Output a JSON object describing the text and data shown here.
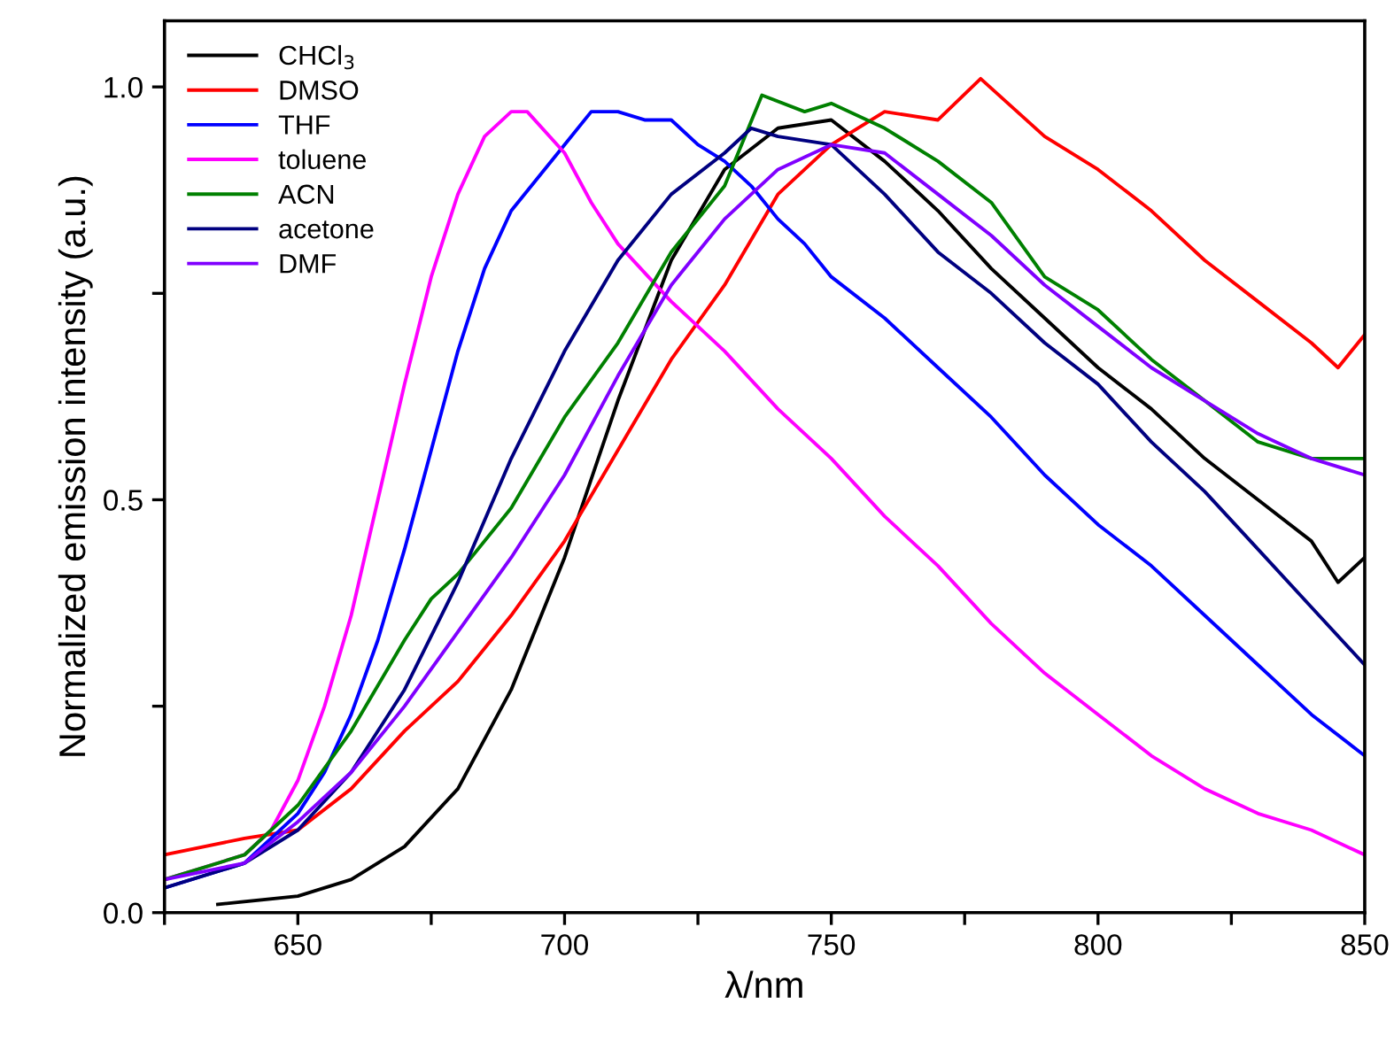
{
  "chart_data": {
    "type": "line",
    "xlabel": "λ/nm",
    "ylabel": "Normalized emission intensity (a.u.)",
    "xlim": [
      625,
      850
    ],
    "ylim": [
      0,
      1.08
    ],
    "xticks": [
      {
        "value": 625,
        "label": null
      },
      650,
      {
        "value": 675,
        "label": null
      },
      700,
      {
        "value": 725,
        "label": null
      },
      750,
      {
        "value": 775,
        "label": null
      },
      800,
      {
        "value": 825,
        "label": null
      },
      850
    ],
    "yticks": [
      {
        "value": 0,
        "label": "0.0"
      },
      {
        "value": 0.25,
        "label": null
      },
      {
        "value": 0.5,
        "label": "0.5"
      },
      {
        "value": 0.75,
        "label": null
      },
      {
        "value": 1,
        "label": "1.0"
      }
    ],
    "legend": "top left",
    "grid": false,
    "marker": "none",
    "line_style": "solid",
    "series": [
      {
        "name": "CHCl$_{3}$",
        "color": "#000000",
        "x": [
          635,
          650,
          660,
          670,
          680,
          690,
          700,
          710,
          720,
          730,
          740,
          750,
          760,
          770,
          780,
          790,
          800,
          810,
          820,
          830,
          840,
          845,
          850
        ],
        "values": [
          0.01,
          0.02,
          0.04,
          0.08,
          0.15,
          0.27,
          0.43,
          0.62,
          0.79,
          0.9,
          0.95,
          0.96,
          0.91,
          0.85,
          0.78,
          0.72,
          0.66,
          0.61,
          0.55,
          0.5,
          0.45,
          0.4,
          0.43
        ]
      },
      {
        "name": "DMSO",
        "color": "#ff0000",
        "x": [
          625,
          640,
          650,
          660,
          670,
          680,
          690,
          700,
          710,
          720,
          730,
          740,
          750,
          760,
          770,
          778,
          790,
          800,
          810,
          820,
          830,
          840,
          845,
          850
        ],
        "values": [
          0.07,
          0.09,
          0.1,
          0.15,
          0.22,
          0.28,
          0.36,
          0.45,
          0.56,
          0.67,
          0.76,
          0.87,
          0.93,
          0.97,
          0.96,
          1.01,
          0.94,
          0.9,
          0.85,
          0.79,
          0.74,
          0.69,
          0.66,
          0.7
        ]
      },
      {
        "name": "THF",
        "color": "#0000ff",
        "x": [
          625,
          640,
          650,
          655,
          660,
          665,
          670,
          675,
          680,
          685,
          690,
          695,
          700,
          705,
          710,
          715,
          720,
          725,
          730,
          735,
          740,
          745,
          750,
          760,
          770,
          780,
          790,
          800,
          810,
          820,
          830,
          840,
          850
        ],
        "values": [
          0.03,
          0.06,
          0.12,
          0.17,
          0.24,
          0.33,
          0.44,
          0.56,
          0.68,
          0.78,
          0.85,
          0.89,
          0.93,
          0.97,
          0.97,
          0.96,
          0.96,
          0.93,
          0.91,
          0.88,
          0.84,
          0.81,
          0.77,
          0.72,
          0.66,
          0.6,
          0.53,
          0.47,
          0.42,
          0.36,
          0.3,
          0.24,
          0.19
        ]
      },
      {
        "name": "toluene",
        "color": "#ff00ff",
        "x": [
          625,
          640,
          645,
          650,
          655,
          660,
          665,
          670,
          675,
          680,
          685,
          690,
          693,
          700,
          705,
          710,
          720,
          730,
          740,
          750,
          760,
          770,
          780,
          790,
          800,
          810,
          820,
          830,
          840,
          850
        ],
        "values": [
          0.04,
          0.07,
          0.1,
          0.16,
          0.25,
          0.36,
          0.5,
          0.64,
          0.77,
          0.87,
          0.94,
          0.97,
          0.97,
          0.92,
          0.86,
          0.81,
          0.74,
          0.68,
          0.61,
          0.55,
          0.48,
          0.42,
          0.35,
          0.29,
          0.24,
          0.19,
          0.15,
          0.12,
          0.1,
          0.07
        ]
      },
      {
        "name": "ACN",
        "color": "#008000",
        "x": [
          625,
          640,
          650,
          660,
          670,
          675,
          680,
          690,
          700,
          710,
          720,
          730,
          737,
          745,
          750,
          760,
          770,
          780,
          790,
          800,
          810,
          820,
          830,
          840,
          850
        ],
        "values": [
          0.04,
          0.07,
          0.13,
          0.22,
          0.33,
          0.38,
          0.41,
          0.49,
          0.6,
          0.69,
          0.8,
          0.88,
          0.99,
          0.97,
          0.98,
          0.95,
          0.91,
          0.86,
          0.77,
          0.73,
          0.67,
          0.62,
          0.57,
          0.55,
          0.55
        ]
      },
      {
        "name": "acetone",
        "color": "#000080",
        "x": [
          625,
          640,
          650,
          660,
          670,
          680,
          690,
          700,
          710,
          720,
          730,
          735,
          740,
          750,
          760,
          770,
          780,
          790,
          800,
          810,
          820,
          830,
          840,
          850
        ],
        "values": [
          0.03,
          0.06,
          0.1,
          0.17,
          0.27,
          0.4,
          0.55,
          0.68,
          0.79,
          0.87,
          0.92,
          0.95,
          0.94,
          0.93,
          0.87,
          0.8,
          0.75,
          0.69,
          0.64,
          0.57,
          0.51,
          0.44,
          0.37,
          0.3
        ]
      },
      {
        "name": "DMF",
        "color": "#8000ff",
        "x": [
          625,
          640,
          650,
          660,
          670,
          680,
          690,
          700,
          710,
          720,
          730,
          740,
          750,
          760,
          770,
          780,
          790,
          800,
          810,
          820,
          830,
          840,
          850
        ],
        "values": [
          0.04,
          0.06,
          0.11,
          0.17,
          0.25,
          0.34,
          0.43,
          0.53,
          0.65,
          0.76,
          0.84,
          0.9,
          0.93,
          0.92,
          0.87,
          0.82,
          0.76,
          0.71,
          0.66,
          0.62,
          0.58,
          0.55,
          0.53
        ]
      }
    ]
  }
}
